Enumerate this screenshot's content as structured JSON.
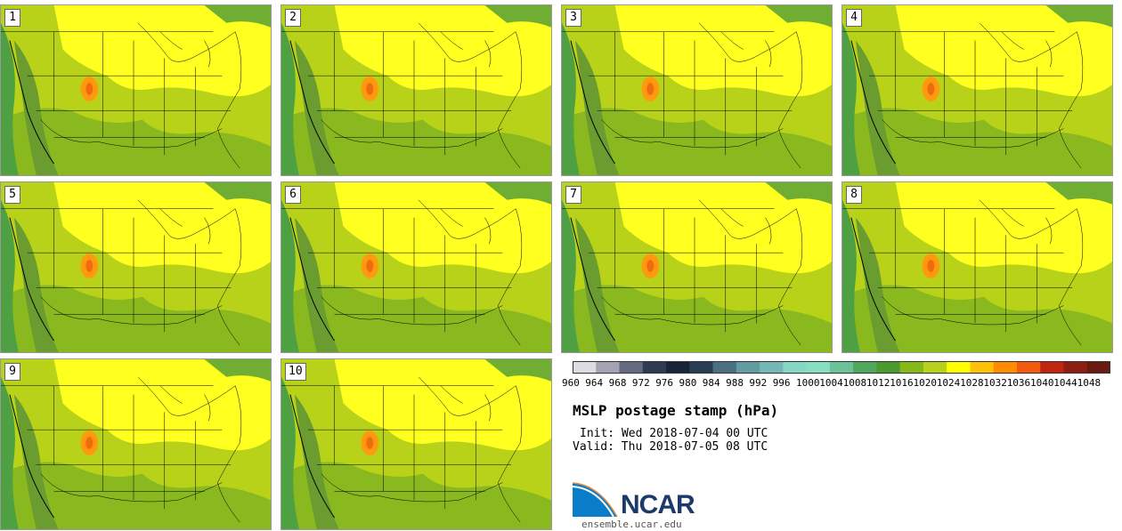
{
  "panels": [
    {
      "label": "1"
    },
    {
      "label": "2"
    },
    {
      "label": "3"
    },
    {
      "label": "4"
    },
    {
      "label": "5"
    },
    {
      "label": "6"
    },
    {
      "label": "7"
    },
    {
      "label": "8"
    },
    {
      "label": "9"
    },
    {
      "label": "10"
    }
  ],
  "colorbar": {
    "ticks": [
      "960",
      "964",
      "968",
      "972",
      "976",
      "980",
      "984",
      "988",
      "992",
      "996",
      "1000",
      "1004",
      "1008",
      "1012",
      "1016",
      "1020",
      "1024",
      "1028",
      "1032",
      "1036",
      "1040",
      "1044",
      "1048"
    ],
    "colors": [
      "#dcdce3",
      "#a3a3b3",
      "#646b80",
      "#2f3a54",
      "#1a2438",
      "#2a3d57",
      "#4a6e82",
      "#639ba3",
      "#74b7b5",
      "#86d6c6",
      "#86dfc0",
      "#6cc196",
      "#4fa75c",
      "#4a9a2f",
      "#86b81a",
      "#b7d11c",
      "#ffff00",
      "#ffc107",
      "#ff8c00",
      "#f25a10",
      "#c12510",
      "#8e1d12",
      "#6a1a10"
    ]
  },
  "title": "MSLP postage stamp (hPa)",
  "init": "Init: Wed 2018-07-04 00 UTC",
  "valid": "Valid: Thu 2018-07-05 08 UTC",
  "logo_text": "NCAR",
  "url": "ensemble.ucar.edu"
}
